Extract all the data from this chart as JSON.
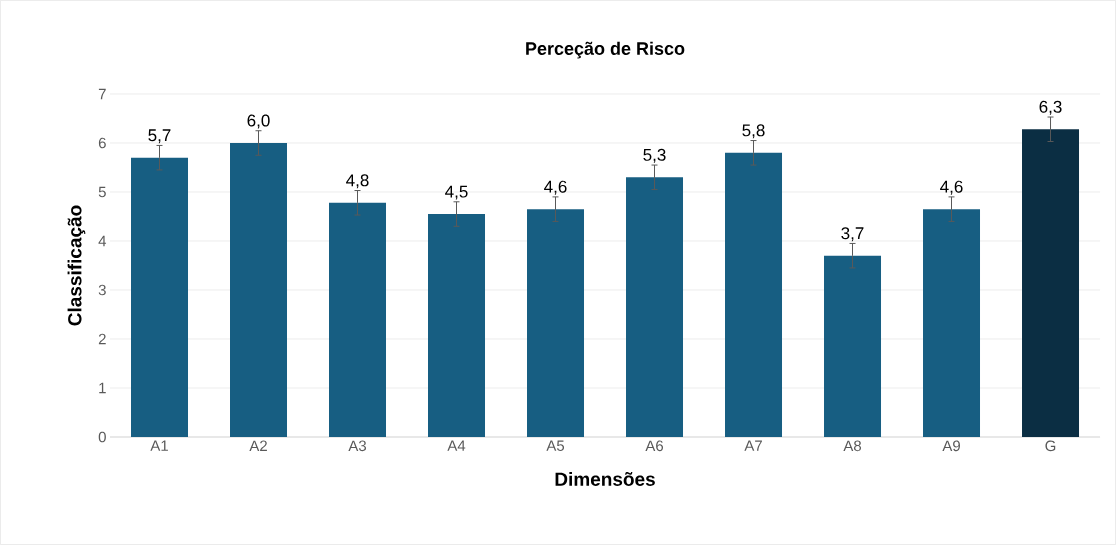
{
  "chart_data": {
    "type": "bar",
    "title": "Perceção de Risco",
    "xlabel": "Dimensões",
    "ylabel": "Classificação",
    "categories": [
      "A1",
      "A2",
      "A3",
      "A4",
      "A5",
      "A6",
      "A7",
      "A8",
      "A9",
      "G"
    ],
    "values": [
      5.7,
      6.0,
      4.78,
      4.55,
      4.65,
      5.3,
      5.8,
      3.7,
      4.65,
      6.28
    ],
    "errors": [
      0.25,
      0.25,
      0.25,
      0.25,
      0.25,
      0.25,
      0.25,
      0.25,
      0.25,
      0.25
    ],
    "value_labels": [
      "5,7",
      "6,0",
      "4,8",
      "4,5",
      "4,6",
      "5,3",
      "5,8",
      "3,7",
      "4,6",
      "6,3"
    ],
    "colors": [
      "#175e82",
      "#175e82",
      "#175e82",
      "#175e82",
      "#175e82",
      "#175e82",
      "#175e82",
      "#175e82",
      "#175e82",
      "#0b2e43"
    ],
    "ylim": [
      0,
      7
    ],
    "yticks": [
      0,
      1,
      2,
      3,
      4,
      5,
      6,
      7
    ],
    "grid": "y"
  }
}
